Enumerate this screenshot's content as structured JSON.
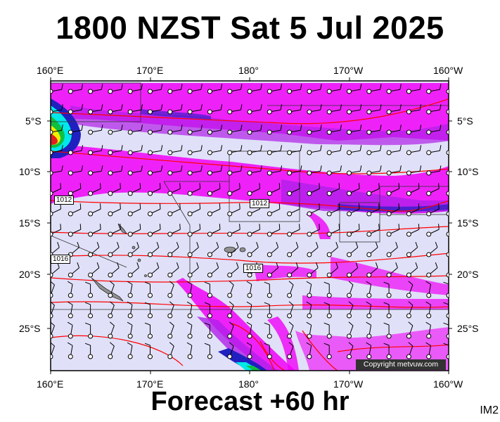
{
  "title": "1800 NZST Sat 5 Jul 2025",
  "subtitle": "Forecast +60 hr",
  "image_code": "IM2",
  "copyright": "Copyright metvuw.com",
  "longitude_labels": [
    "160°E",
    "170°E",
    "180°",
    "170°W",
    "160°W"
  ],
  "latitude_labels": [
    "5°S",
    "10°S",
    "15°S",
    "20°S",
    "25°S"
  ],
  "isobar_labels": [
    "1012",
    "1012",
    "1016",
    "1016"
  ],
  "colors": {
    "background": "#e0e0f8",
    "precip_light": "#f000f8",
    "precip_mid": "#b020e8",
    "precip_heavy": "#2020c0",
    "precip_extreme_cyan": "#00e8e8",
    "precip_extreme_green": "#10c040",
    "precip_extreme_yellow": "#f0f000",
    "precip_extreme_red": "#e02020",
    "isobar": "#ff0000",
    "land": "#808080"
  },
  "map_extent": {
    "lon": [
      "160°E",
      "160°W"
    ],
    "lat": [
      "2°S",
      "29°S"
    ]
  },
  "isobars_hpa": [
    1012,
    1016
  ]
}
